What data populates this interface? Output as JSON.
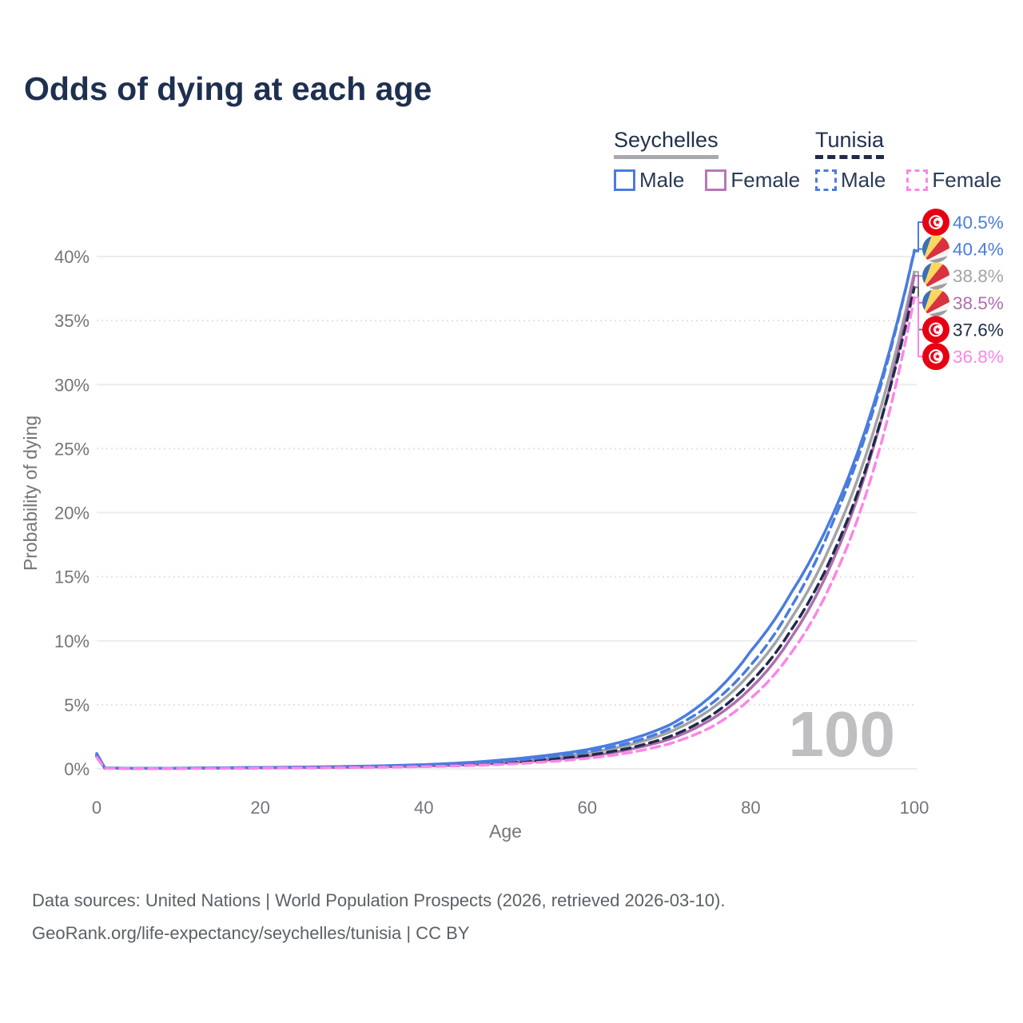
{
  "title": "Odds of dying at each age",
  "legend": {
    "groups": [
      {
        "label": "Seychelles",
        "line_style": "solid",
        "underline_color": "#a7a9ac",
        "items": [
          {
            "label": "Male",
            "color": "#4a7cdf"
          },
          {
            "label": "Female",
            "color": "#b678b6"
          }
        ]
      },
      {
        "label": "Tunisia",
        "line_style": "dashed",
        "underline_color": "#1f2b49",
        "items": [
          {
            "label": "Male",
            "color": "#4a7cdf"
          },
          {
            "label": "Female",
            "color": "#fb86e6"
          }
        ]
      }
    ]
  },
  "watermark": "100",
  "footer": {
    "line1": "Data sources: United Nations | World Population Prospects (2026, retrieved 2026-03-10).",
    "line2": "GeoRank.org/life-expectancy/seychelles/tunisia | CC BY"
  },
  "chart_data": {
    "type": "line",
    "title": "Odds of dying at each age",
    "xlabel": "Age",
    "ylabel": "Probability of dying",
    "xlim": [
      0,
      100
    ],
    "ylim_percent": [
      0,
      42
    ],
    "x_ticks": [
      0,
      20,
      40,
      60,
      80,
      100
    ],
    "y_ticks_percent": [
      0,
      5,
      10,
      15,
      20,
      25,
      30,
      35,
      40
    ],
    "grid": "horizontal, solid at multiples of 10%, dotted at 5/15/25/35%",
    "legend_position": "top-right",
    "ages": [
      0,
      1,
      5,
      10,
      15,
      20,
      25,
      30,
      35,
      40,
      45,
      50,
      55,
      60,
      65,
      70,
      75,
      80,
      85,
      90,
      95,
      100
    ],
    "series": [
      {
        "key": "seychelles_both",
        "name": "Seychelles (both sexes)",
        "country": "Seychelles",
        "sex": "both",
        "style": "solid",
        "color": "#a3a4a8",
        "values_percent": [
          1.1,
          0.06,
          0.04,
          0.05,
          0.07,
          0.095,
          0.12,
          0.15,
          0.2,
          0.27,
          0.39,
          0.58,
          0.85,
          1.22,
          1.85,
          2.85,
          4.6,
          7.5,
          11.8,
          17.8,
          26.3,
          38.8
        ]
      },
      {
        "key": "seychelles_female",
        "name": "Seychelles Female",
        "country": "Seychelles",
        "sex": "female",
        "style": "solid",
        "color": "#ae6fae",
        "values_percent": [
          1.0,
          0.05,
          0.035,
          0.04,
          0.055,
          0.08,
          0.1,
          0.12,
          0.16,
          0.22,
          0.31,
          0.46,
          0.67,
          0.97,
          1.5,
          2.3,
          3.8,
          6.3,
          10.3,
          16.2,
          25.1,
          38.5
        ]
      },
      {
        "key": "seychelles_male",
        "name": "Seychelles Male",
        "country": "Seychelles",
        "sex": "male",
        "style": "solid",
        "color": "#4a7cdf",
        "values_percent": [
          1.2,
          0.07,
          0.045,
          0.055,
          0.08,
          0.11,
          0.14,
          0.18,
          0.24,
          0.33,
          0.48,
          0.72,
          1.05,
          1.5,
          2.25,
          3.4,
          5.6,
          9.2,
          13.8,
          19.8,
          28.4,
          40.4
        ]
      },
      {
        "key": "tunisia_both",
        "name": "Tunisia (both sexes)",
        "country": "Tunisia",
        "sex": "both",
        "style": "dashed",
        "color": "#1f2b49",
        "values_percent": [
          1.0,
          0.05,
          0.03,
          0.04,
          0.05,
          0.07,
          0.09,
          0.12,
          0.16,
          0.21,
          0.31,
          0.47,
          0.71,
          1.05,
          1.6,
          2.5,
          4.1,
          6.8,
          10.9,
          16.7,
          25.3,
          37.6
        ]
      },
      {
        "key": "tunisia_male",
        "name": "Tunisia Male",
        "country": "Tunisia",
        "sex": "male",
        "style": "dashed",
        "color": "#4a7cdf",
        "values_percent": [
          1.1,
          0.06,
          0.04,
          0.05,
          0.07,
          0.1,
          0.12,
          0.16,
          0.21,
          0.28,
          0.4,
          0.6,
          0.9,
          1.32,
          2.0,
          3.1,
          5.0,
          8.1,
          12.7,
          19.2,
          28.0,
          40.5
        ]
      },
      {
        "key": "tunisia_female",
        "name": "Tunisia Female",
        "country": "Tunisia",
        "sex": "female",
        "style": "dashed",
        "color": "#fb86e6",
        "values_percent": [
          0.9,
          0.04,
          0.025,
          0.03,
          0.04,
          0.06,
          0.075,
          0.095,
          0.125,
          0.17,
          0.24,
          0.36,
          0.55,
          0.82,
          1.25,
          1.95,
          3.2,
          5.5,
          9.1,
          14.7,
          23.3,
          36.8
        ]
      }
    ],
    "annotations": [
      {
        "series": "tunisia_male",
        "text": "40.5%",
        "flag": "tunisia",
        "text_color": "#4a7cdf",
        "line_color": "#4a7cdf"
      },
      {
        "series": "seychelles_male",
        "text": "40.4%",
        "flag": "seychelles",
        "text_color": "#4a7cdf",
        "line_color": "#4a7cdf"
      },
      {
        "series": "seychelles_both",
        "text": "38.8%",
        "flag": "seychelles",
        "text_color": "#a3a4a8",
        "line_color": "#a3a4a8"
      },
      {
        "series": "seychelles_female",
        "text": "38.5%",
        "flag": "seychelles",
        "text_color": "#ae6fae",
        "line_color": "#ae6fae"
      },
      {
        "series": "tunisia_both",
        "text": "37.6%",
        "flag": "tunisia",
        "text_color": "#1f2b49",
        "line_color": "#6b6d72"
      },
      {
        "series": "tunisia_female",
        "text": "36.8%",
        "flag": "tunisia",
        "text_color": "#fb86e6",
        "line_color": "#fb86e6"
      }
    ]
  }
}
